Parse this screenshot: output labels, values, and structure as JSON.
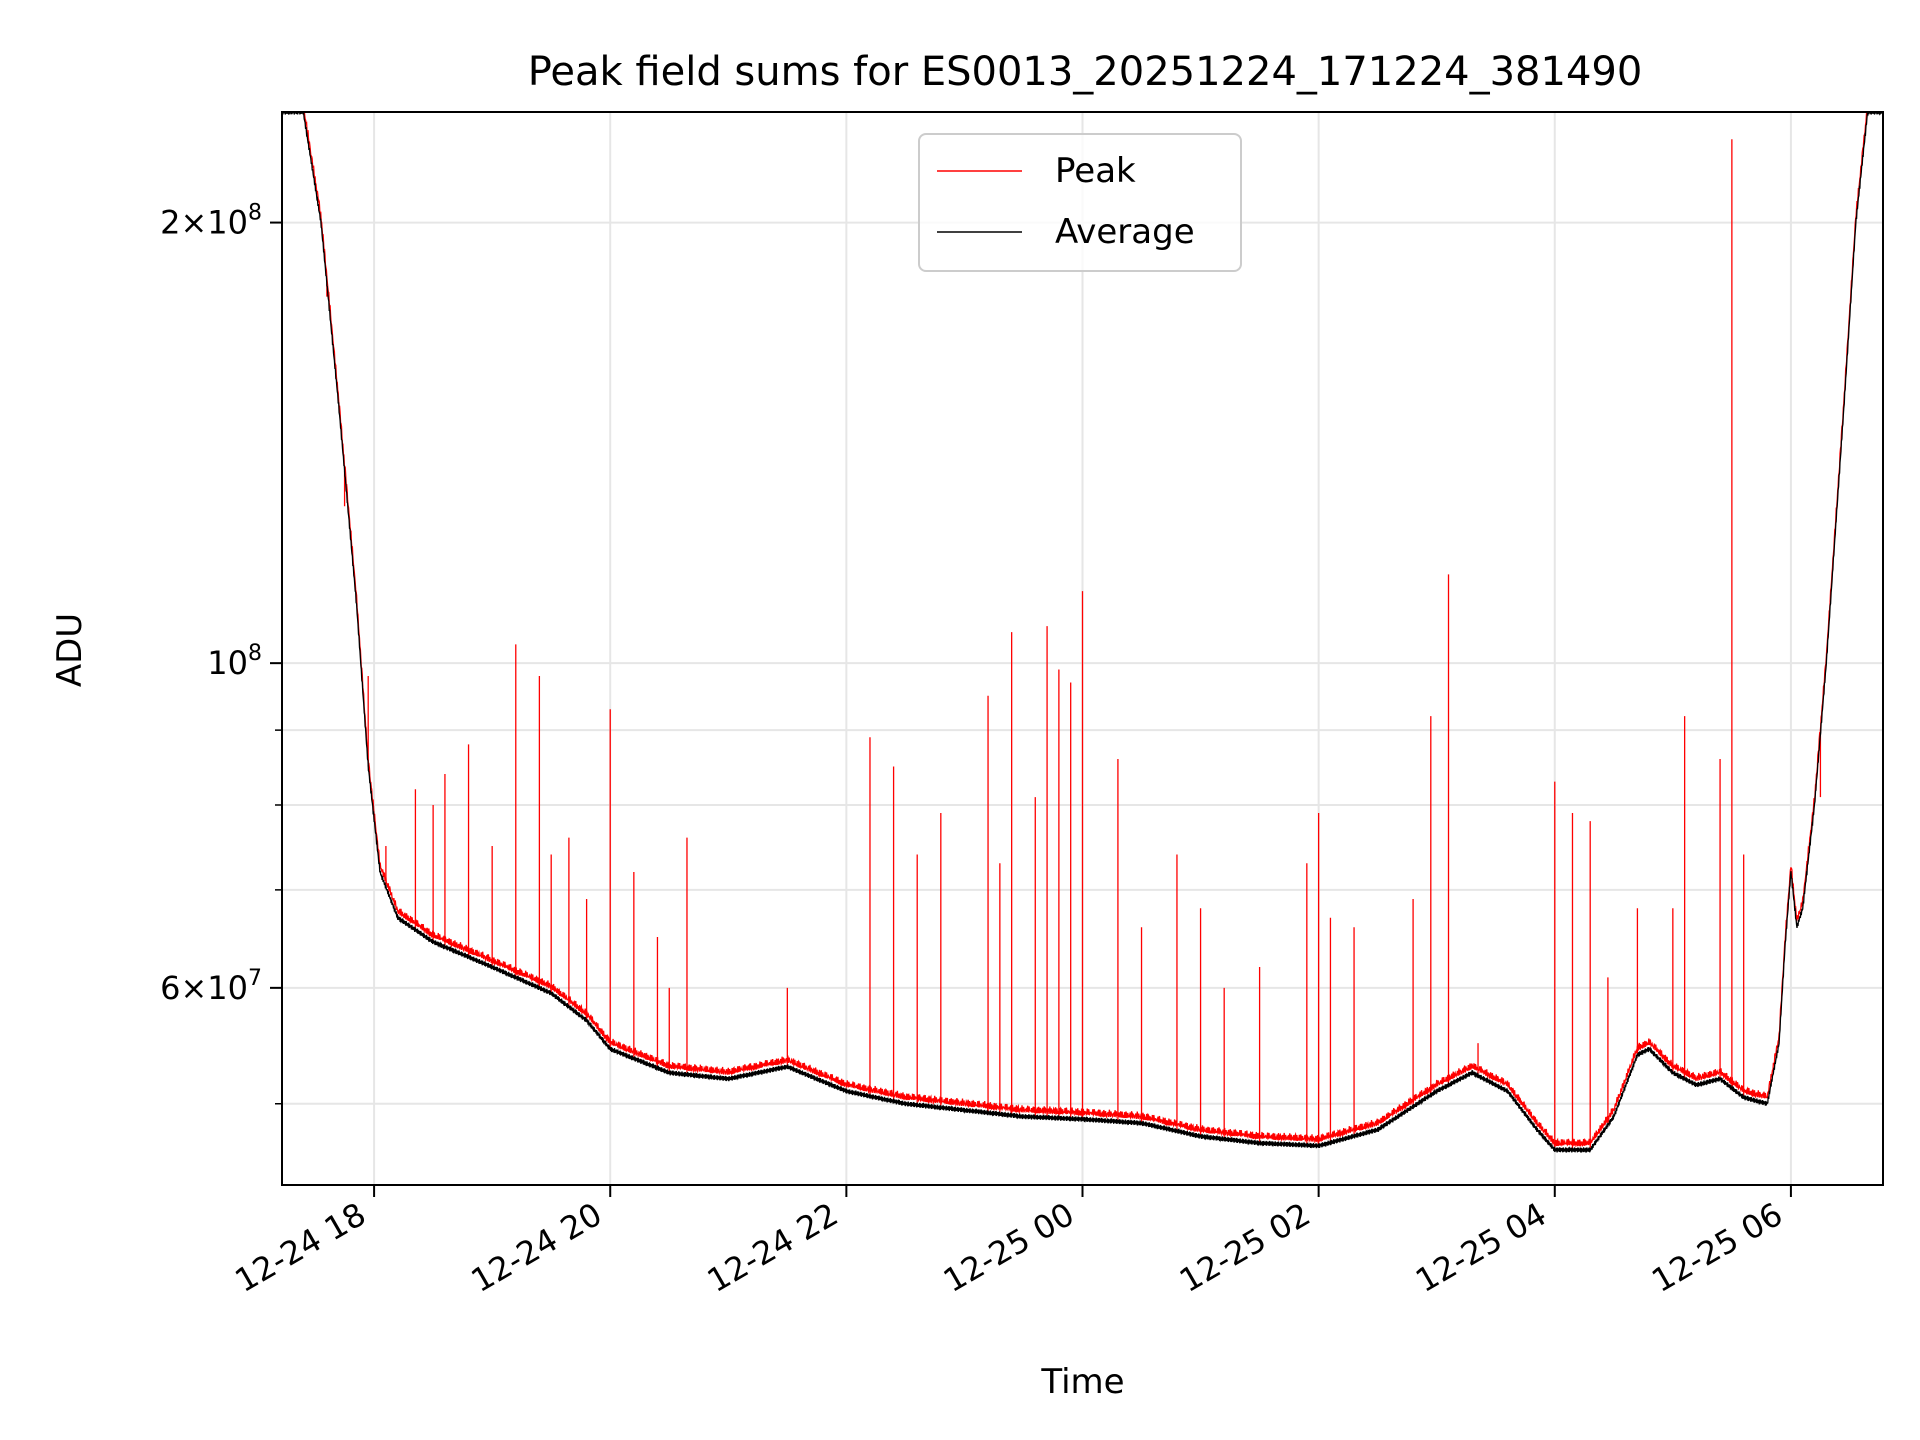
{
  "chart_data": {
    "type": "line",
    "title": "Peak field sums for ES0013_20251224_171224_381490",
    "xlabel": "Time",
    "ylabel": "ADU",
    "yscale": "log",
    "x_unit": "hours since 12-24 00:00",
    "xlim": [
      17.22,
      30.78
    ],
    "ylim": [
      44000000,
      238000000
    ],
    "grid": true,
    "legend": {
      "position": "top-center",
      "entries": [
        "Peak",
        "Average"
      ]
    },
    "x_ticks": [
      {
        "value": 18,
        "label": "12-24 18"
      },
      {
        "value": 20,
        "label": "12-24 20"
      },
      {
        "value": 22,
        "label": "12-24 22"
      },
      {
        "value": 24,
        "label": "12-25 00"
      },
      {
        "value": 26,
        "label": "12-25 02"
      },
      {
        "value": 28,
        "label": "12-25 04"
      },
      {
        "value": 30,
        "label": "12-25 06"
      }
    ],
    "y_major_ticks": [
      {
        "value": 200000000,
        "base": "2×10",
        "exp": "8"
      },
      {
        "value": 100000000,
        "base": "10",
        "exp": "8"
      },
      {
        "value": 60000000,
        "base": "6×10",
        "exp": "7"
      }
    ],
    "y_minor_ticks": [
      50000000,
      70000000,
      80000000,
      90000000
    ],
    "series": [
      {
        "name": "Average",
        "color": "#000000",
        "points": [
          [
            17.22,
            238000000
          ],
          [
            17.4,
            238000000
          ],
          [
            17.55,
            200000000
          ],
          [
            17.7,
            150000000
          ],
          [
            17.85,
            110000000
          ],
          [
            17.95,
            85000000
          ],
          [
            18.05,
            72000000
          ],
          [
            18.2,
            67000000
          ],
          [
            18.5,
            64500000
          ],
          [
            19.0,
            62000000
          ],
          [
            19.5,
            59500000
          ],
          [
            19.8,
            57000000
          ],
          [
            20.0,
            54500000
          ],
          [
            20.5,
            52500000
          ],
          [
            21.0,
            52000000
          ],
          [
            21.5,
            53000000
          ],
          [
            22.0,
            51000000
          ],
          [
            22.5,
            50000000
          ],
          [
            23.0,
            49500000
          ],
          [
            23.5,
            49000000
          ],
          [
            24.0,
            48800000
          ],
          [
            24.5,
            48500000
          ],
          [
            25.0,
            47500000
          ],
          [
            25.5,
            47000000
          ],
          [
            26.0,
            46800000
          ],
          [
            26.5,
            48000000
          ],
          [
            27.0,
            51000000
          ],
          [
            27.3,
            52500000
          ],
          [
            27.6,
            51000000
          ],
          [
            27.85,
            48000000
          ],
          [
            28.0,
            46500000
          ],
          [
            28.3,
            46500000
          ],
          [
            28.5,
            49000000
          ],
          [
            28.7,
            54000000
          ],
          [
            28.8,
            54500000
          ],
          [
            29.0,
            52500000
          ],
          [
            29.2,
            51500000
          ],
          [
            29.4,
            52000000
          ],
          [
            29.6,
            50500000
          ],
          [
            29.8,
            50000000
          ],
          [
            29.9,
            55000000
          ],
          [
            29.95,
            64000000
          ],
          [
            30.0,
            72000000
          ],
          [
            30.05,
            66000000
          ],
          [
            30.1,
            68000000
          ],
          [
            30.2,
            80000000
          ],
          [
            30.3,
            100000000
          ],
          [
            30.45,
            150000000
          ],
          [
            30.55,
            200000000
          ],
          [
            30.65,
            238000000
          ],
          [
            30.78,
            238000000
          ]
        ]
      },
      {
        "name": "Peak",
        "color": "#ff0000",
        "spikes": [
          [
            17.6,
            178000000
          ],
          [
            17.75,
            128000000
          ],
          [
            17.85,
            110000000
          ],
          [
            17.95,
            98000000
          ],
          [
            18.1,
            75000000
          ],
          [
            18.35,
            82000000
          ],
          [
            18.5,
            80000000
          ],
          [
            18.6,
            84000000
          ],
          [
            18.8,
            88000000
          ],
          [
            19.0,
            75000000
          ],
          [
            19.2,
            103000000
          ],
          [
            19.4,
            98000000
          ],
          [
            19.5,
            74000000
          ],
          [
            19.65,
            76000000
          ],
          [
            19.8,
            69000000
          ],
          [
            20.0,
            93000000
          ],
          [
            20.2,
            72000000
          ],
          [
            20.4,
            65000000
          ],
          [
            20.5,
            60000000
          ],
          [
            20.65,
            76000000
          ],
          [
            21.5,
            60000000
          ],
          [
            22.2,
            89000000
          ],
          [
            22.4,
            85000000
          ],
          [
            22.6,
            74000000
          ],
          [
            22.8,
            79000000
          ],
          [
            23.2,
            95000000
          ],
          [
            23.3,
            73000000
          ],
          [
            23.4,
            105000000
          ],
          [
            23.6,
            81000000
          ],
          [
            23.7,
            106000000
          ],
          [
            23.8,
            99000000
          ],
          [
            23.9,
            97000000
          ],
          [
            24.0,
            112000000
          ],
          [
            24.3,
            86000000
          ],
          [
            24.5,
            66000000
          ],
          [
            24.8,
            74000000
          ],
          [
            25.0,
            68000000
          ],
          [
            25.2,
            60000000
          ],
          [
            25.5,
            62000000
          ],
          [
            25.9,
            73000000
          ],
          [
            26.0,
            79000000
          ],
          [
            26.1,
            67000000
          ],
          [
            26.3,
            66000000
          ],
          [
            26.8,
            69000000
          ],
          [
            26.95,
            92000000
          ],
          [
            27.1,
            115000000
          ],
          [
            27.35,
            55000000
          ],
          [
            28.0,
            83000000
          ],
          [
            28.15,
            79000000
          ],
          [
            28.3,
            78000000
          ],
          [
            28.45,
            61000000
          ],
          [
            28.7,
            68000000
          ],
          [
            29.0,
            68000000
          ],
          [
            29.1,
            92000000
          ],
          [
            29.4,
            86000000
          ],
          [
            29.5,
            228000000
          ],
          [
            29.6,
            74000000
          ],
          [
            30.25,
            81000000
          ]
        ]
      }
    ]
  }
}
